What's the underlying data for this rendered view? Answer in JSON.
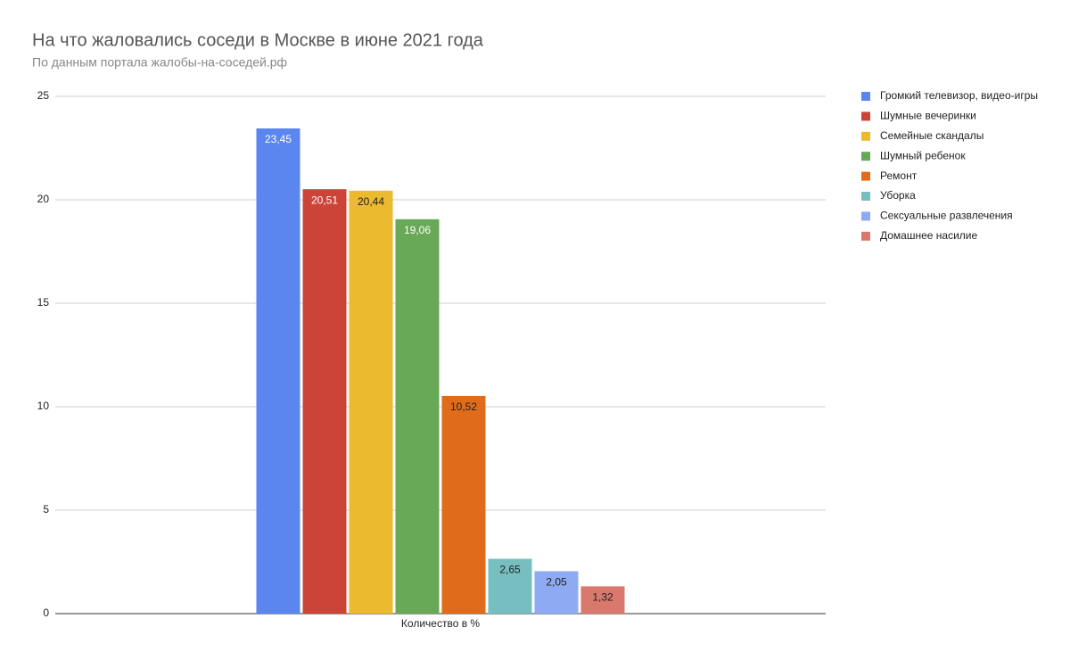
{
  "chart_data": {
    "type": "bar",
    "title": "На что жаловались соседи в Москве в июне 2021 года",
    "subtitle": "По данным портала жалобы-на-соседей.рф",
    "categories": [
      "Количество в %"
    ],
    "series": [
      {
        "name": "Громкий телевизор, видео-игры",
        "color": "#5b86f0",
        "label_color": "#ffffff",
        "values": [
          23.45
        ],
        "value_labels": [
          "23,45"
        ]
      },
      {
        "name": "Шумные вечеринки",
        "color": "#cc4438",
        "label_color": "#ffffff",
        "values": [
          20.51
        ],
        "value_labels": [
          "20,51"
        ]
      },
      {
        "name": "Семейные скандалы",
        "color": "#ebba2f",
        "label_color": "#222222",
        "values": [
          20.44
        ],
        "value_labels": [
          "20,44"
        ]
      },
      {
        "name": "Шумный ребенок",
        "color": "#68a957",
        "label_color": "#ffffff",
        "values": [
          19.06
        ],
        "value_labels": [
          "19,06"
        ]
      },
      {
        "name": "Ремонт",
        "color": "#e06c1b",
        "label_color": "#222222",
        "values": [
          10.52
        ],
        "value_labels": [
          "10,52"
        ]
      },
      {
        "name": "Уборка",
        "color": "#77bec1",
        "label_color": "#222222",
        "values": [
          2.65
        ],
        "value_labels": [
          "2,65"
        ]
      },
      {
        "name": "Сексуальные развлечения",
        "color": "#8eaaf2",
        "label_color": "#222222",
        "values": [
          2.05
        ],
        "value_labels": [
          "2,05"
        ]
      },
      {
        "name": "Домашнее насилие",
        "color": "#d9786d",
        "label_color": "#222222",
        "values": [
          1.32
        ],
        "value_labels": [
          "1,32"
        ]
      }
    ],
    "ylim": [
      0,
      25
    ],
    "yticks": [
      0,
      5,
      10,
      15,
      20,
      25
    ],
    "grid": true,
    "legend": "right"
  }
}
